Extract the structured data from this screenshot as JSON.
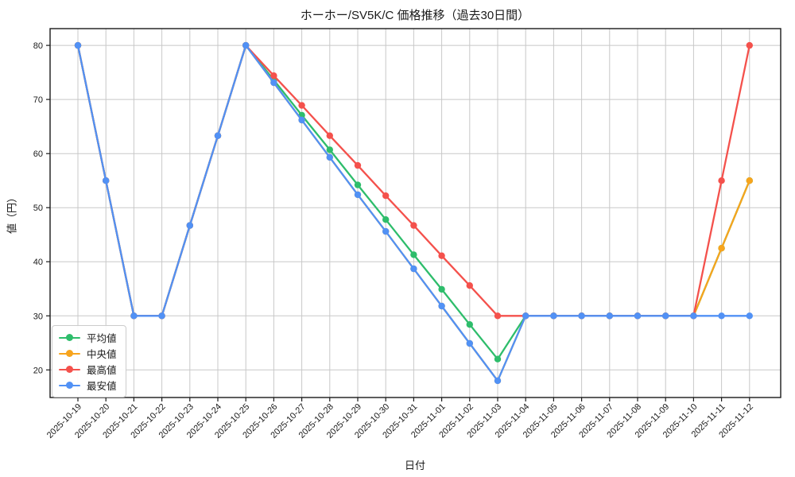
{
  "chart_data": {
    "type": "line",
    "title": "ホーホー/SV5K/C 価格推移（過去30日間）",
    "xlabel": "日付",
    "ylabel": "値（円）",
    "grid": true,
    "legend_position": "lower left",
    "ylim": [
      14.9,
      83.1
    ],
    "yticks": [
      20,
      30,
      40,
      50,
      60,
      70,
      80
    ],
    "x": [
      "2025-10-19",
      "2025-10-20",
      "2025-10-21",
      "2025-10-22",
      "2025-10-23",
      "2025-10-24",
      "2025-10-25",
      "2025-10-26",
      "2025-10-27",
      "2025-10-28",
      "2025-10-29",
      "2025-10-30",
      "2025-10-31",
      "2025-11-01",
      "2025-11-02",
      "2025-11-03",
      "2025-11-04",
      "2025-11-05",
      "2025-11-06",
      "2025-11-07",
      "2025-11-08",
      "2025-11-09",
      "2025-11-10",
      "2025-11-11",
      "2025-11-12"
    ],
    "series": [
      {
        "key": "average",
        "name": "平均値",
        "color": "#2ebd6b",
        "values": [
          80,
          55,
          30,
          30,
          46.7,
          63.3,
          80,
          73.6,
          67.1,
          60.7,
          54.2,
          47.8,
          41.3,
          34.9,
          28.4,
          22,
          30,
          30,
          30,
          30,
          30,
          30,
          30,
          42.5,
          55
        ]
      },
      {
        "key": "median",
        "name": "中央値",
        "color": "#f7a41d",
        "values": [
          80,
          55,
          30,
          30,
          46.7,
          63.3,
          80,
          73.1,
          66.2,
          59.3,
          52.4,
          45.6,
          38.7,
          31.8,
          24.9,
          18,
          30,
          30,
          30,
          30,
          30,
          30,
          30,
          42.5,
          55
        ]
      },
      {
        "key": "highest",
        "name": "最高値",
        "color": "#f4514c",
        "values": [
          80,
          55,
          30,
          30,
          46.7,
          63.3,
          80,
          74.4,
          68.9,
          63.3,
          57.8,
          52.2,
          46.7,
          41.1,
          35.6,
          30,
          30,
          30,
          30,
          30,
          30,
          30,
          30,
          55,
          80
        ]
      },
      {
        "key": "lowest",
        "name": "最安値",
        "color": "#5191f5",
        "values": [
          80,
          55,
          30,
          30,
          46.7,
          63.3,
          80,
          73.1,
          66.2,
          59.3,
          52.4,
          45.6,
          38.7,
          31.8,
          24.9,
          18,
          30,
          30,
          30,
          30,
          30,
          30,
          30,
          30,
          30
        ]
      }
    ],
    "colors": {
      "grid": "#c8c8c8",
      "frame": "#1a1a1a",
      "background": "#ffffff",
      "text": "#1a1a1a"
    }
  }
}
